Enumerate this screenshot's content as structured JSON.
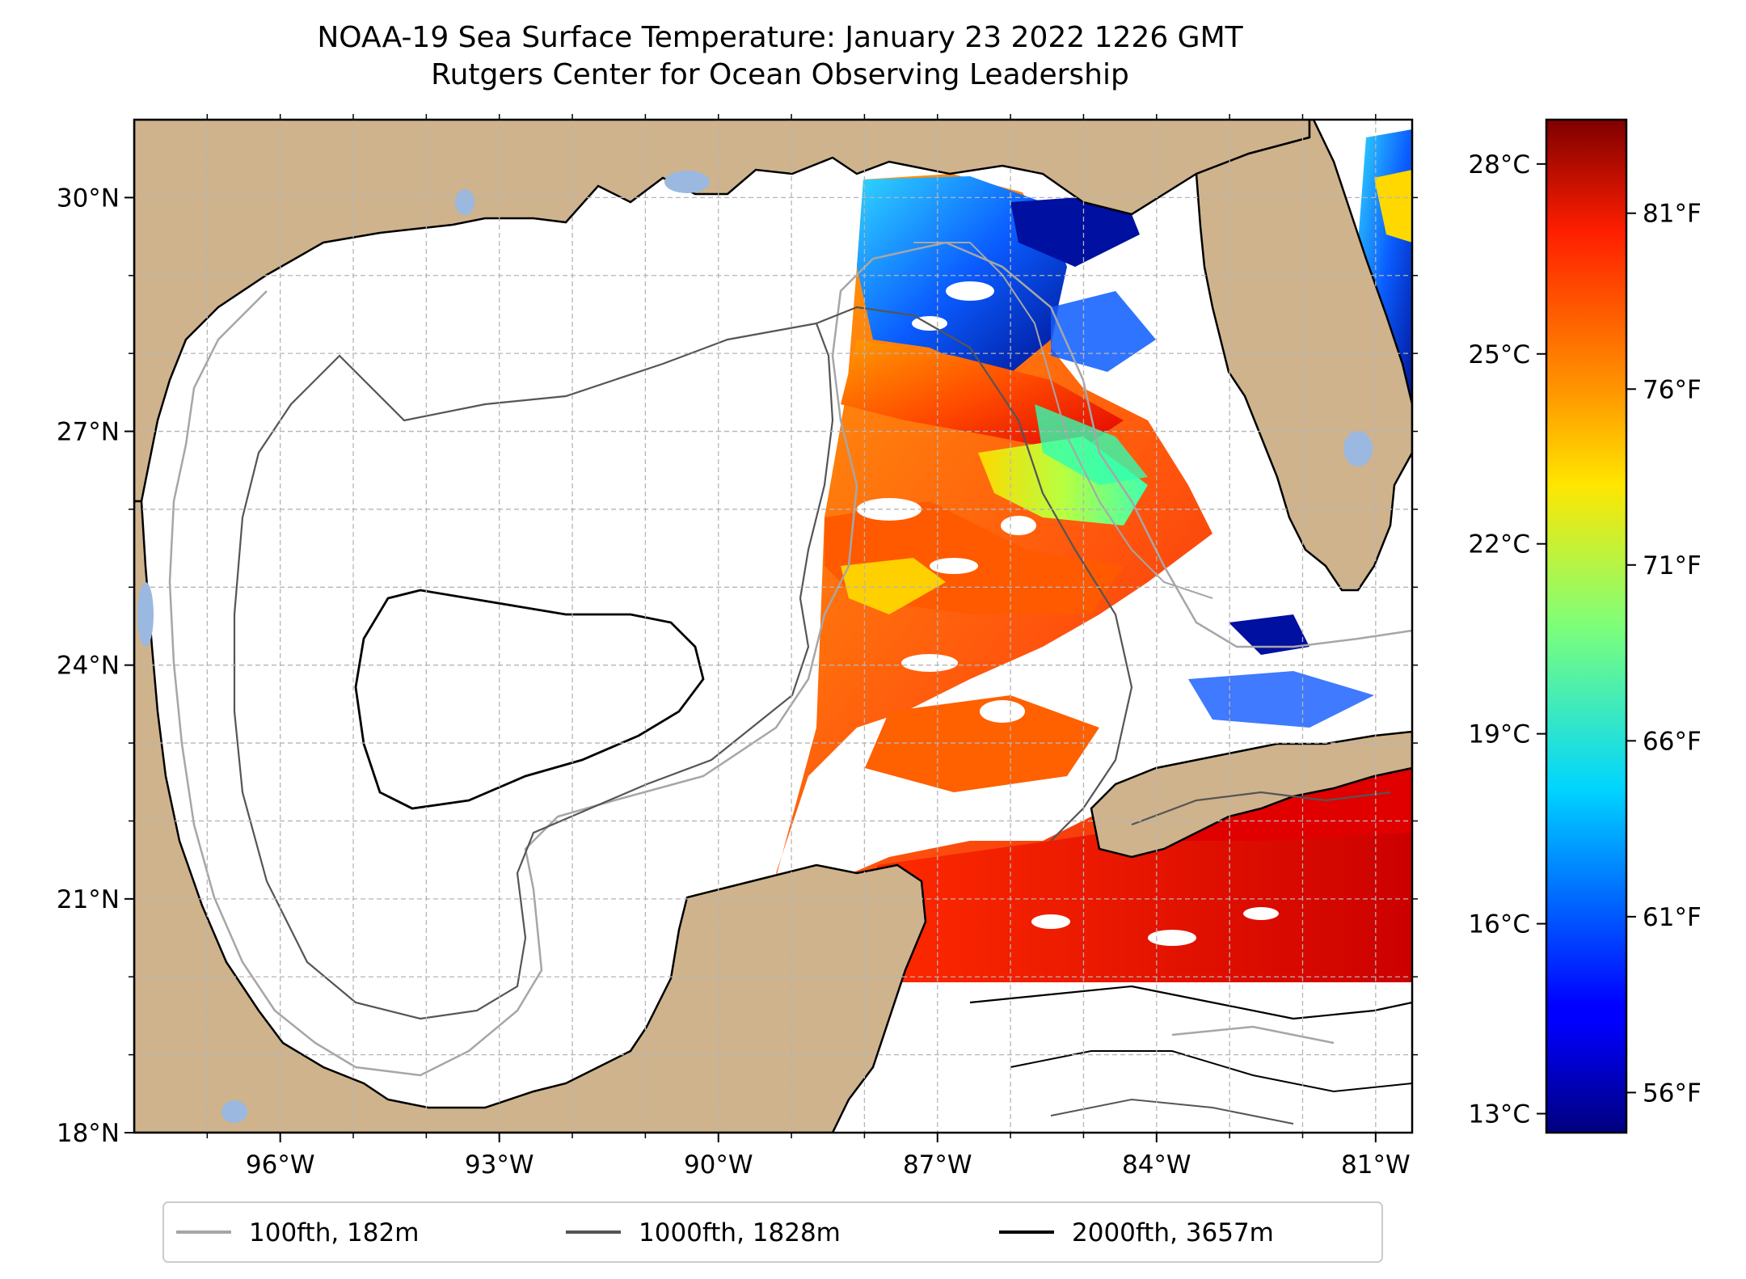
{
  "title": "NOAA-19 Sea Surface Temperature: January 23 2022 1226 GMT",
  "subtitle": "Rutgers Center for Ocean Observing Leadership",
  "map": {
    "lon_range": [
      -98,
      -80.5
    ],
    "lat_range": [
      18,
      31
    ],
    "lat_ticks": [
      "30°N",
      "27°N",
      "24°N",
      "21°N",
      "18°N"
    ],
    "lat_tick_values": [
      30,
      27,
      24,
      21,
      18
    ],
    "lon_ticks": [
      "96°W",
      "93°W",
      "90°W",
      "87°W",
      "84°W",
      "81°W"
    ],
    "lon_tick_values": [
      -96,
      -93,
      -90,
      -87,
      -84,
      -81
    ],
    "land_color": "#cfb38c",
    "inland_water_color": "#9bb8e0",
    "grid": true
  },
  "colorbar": {
    "colormap": "jet",
    "celsius_ticks": [
      "28°C",
      "25°C",
      "22°C",
      "19°C",
      "16°C",
      "13°C"
    ],
    "celsius_values": [
      28,
      25,
      22,
      19,
      16,
      13
    ],
    "fahrenheit_ticks": [
      "81°F",
      "76°F",
      "71°F",
      "66°F",
      "61°F",
      "56°F"
    ],
    "fahrenheit_values": [
      81,
      76,
      71,
      66,
      61,
      56
    ],
    "range_c": [
      12.7,
      28.7
    ]
  },
  "legend": {
    "placement": "bottom-center",
    "items": [
      {
        "label": "100fth, 182m",
        "color": "#a6a6a6"
      },
      {
        "label": "1000fth, 1828m",
        "color": "#555555"
      },
      {
        "label": "2000fth, 3657m",
        "color": "#000000"
      }
    ]
  }
}
